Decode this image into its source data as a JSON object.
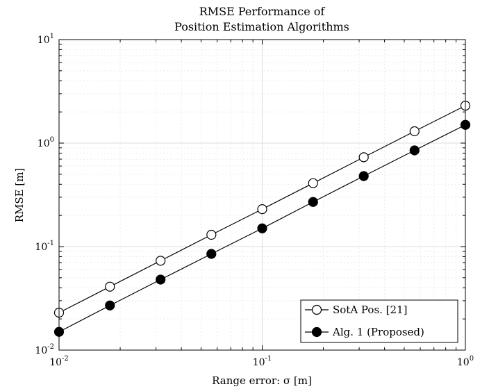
{
  "chart_data": {
    "type": "line",
    "title": [
      "RMSE Performance of",
      "Position Estimation Algorithms"
    ],
    "xlabel": "Range error: σ [m]",
    "ylabel": "RMSE [m]",
    "xscale": "log",
    "yscale": "log",
    "xlim": [
      0.01,
      1
    ],
    "ylim": [
      0.01,
      10
    ],
    "grid": true,
    "minor_grid": true,
    "legend_position": "bottom-right",
    "x_ticks": [
      {
        "value": 0.01,
        "base": "10",
        "exp": "-2"
      },
      {
        "value": 0.1,
        "base": "10",
        "exp": "-1"
      },
      {
        "value": 1,
        "base": "10",
        "exp": "0"
      }
    ],
    "y_ticks": [
      {
        "value": 0.01,
        "base": "10",
        "exp": "-2"
      },
      {
        "value": 0.1,
        "base": "10",
        "exp": "-1"
      },
      {
        "value": 1,
        "base": "10",
        "exp": "0"
      },
      {
        "value": 10,
        "base": "10",
        "exp": "1"
      }
    ],
    "x": [
      0.01,
      0.0178,
      0.0316,
      0.0562,
      0.1,
      0.178,
      0.316,
      0.562,
      1.0
    ],
    "series": [
      {
        "name": "SotA Pos. [21]",
        "marker": "open-circle",
        "color": "#000000",
        "values": [
          0.023,
          0.041,
          0.073,
          0.13,
          0.23,
          0.41,
          0.73,
          1.3,
          2.3
        ]
      },
      {
        "name": "Alg. 1 (Proposed)",
        "marker": "filled-circle",
        "color": "#000000",
        "values": [
          0.015,
          0.027,
          0.048,
          0.085,
          0.15,
          0.27,
          0.48,
          0.85,
          1.5
        ]
      }
    ]
  }
}
